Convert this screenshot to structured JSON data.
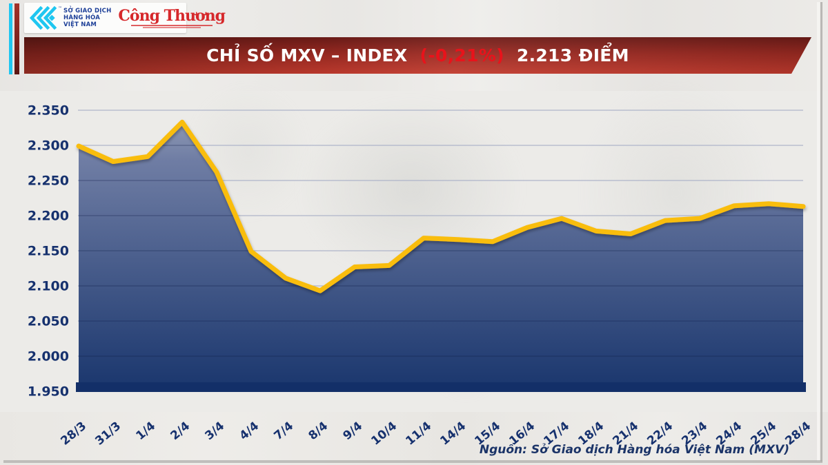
{
  "header": {
    "mxv": {
      "org_lines": [
        "SỞ GIAO DỊCH",
        "HÀNG HÓA",
        "VIỆT NAM"
      ],
      "trademark": "™"
    },
    "congthuong": {
      "name": "Công Thương"
    }
  },
  "banner": {
    "title": "CHỈ SỐ MXV – INDEX",
    "change": "(-0,21%)",
    "points": "2.213 ĐIỂM"
  },
  "chart_data": {
    "type": "area",
    "title": "CHỈ SỐ MXV – INDEX (-0,21%) 2.213 ĐIỂM",
    "x": [
      "28/3",
      "31/3",
      "1/4",
      "2/4",
      "3/4",
      "4/4",
      "7/4",
      "8/4",
      "9/4",
      "10/4",
      "11/4",
      "14/4",
      "15/4",
      "16/4",
      "17/4",
      "18/4",
      "21/4",
      "22/4",
      "23/4",
      "24/4",
      "25/4",
      "28/4"
    ],
    "values": [
      2.299,
      2.277,
      2.284,
      2.333,
      2.262,
      2.149,
      2.111,
      2.093,
      2.127,
      2.129,
      2.168,
      2.166,
      2.163,
      2.183,
      2.196,
      2.178,
      2.174,
      2.193,
      2.196,
      2.214,
      2.217,
      2.213
    ],
    "ylim": [
      1.95,
      2.35
    ],
    "ytick_step": 0.05,
    "ytick_labels": [
      "2.350",
      "2.300",
      "2.250",
      "2.200",
      "2.150",
      "2.100",
      "2.050",
      "2.000",
      "1.950"
    ],
    "grid": true,
    "legend": "none",
    "line_color": "#F9BD0D",
    "area_top_color": "#97A1B7",
    "area_mid_color": "#6F7DA4",
    "area_bottom_color": "#1B376E",
    "baseline_color": "#132F68",
    "gridline_color": "#AEB5C9",
    "label_color": "#16316E"
  },
  "footer": {
    "source": "Nguồn: Sở Giao dịch Hàng hóa Việt Nam (MXV)"
  },
  "colors": {
    "accent_yellow": "#F9BD0D",
    "navy": "#16316E",
    "banner_red": "#C23B2E",
    "change_red": "#E8131B",
    "cyan": "#1FC6F0",
    "logo_red": "#D6282B"
  }
}
